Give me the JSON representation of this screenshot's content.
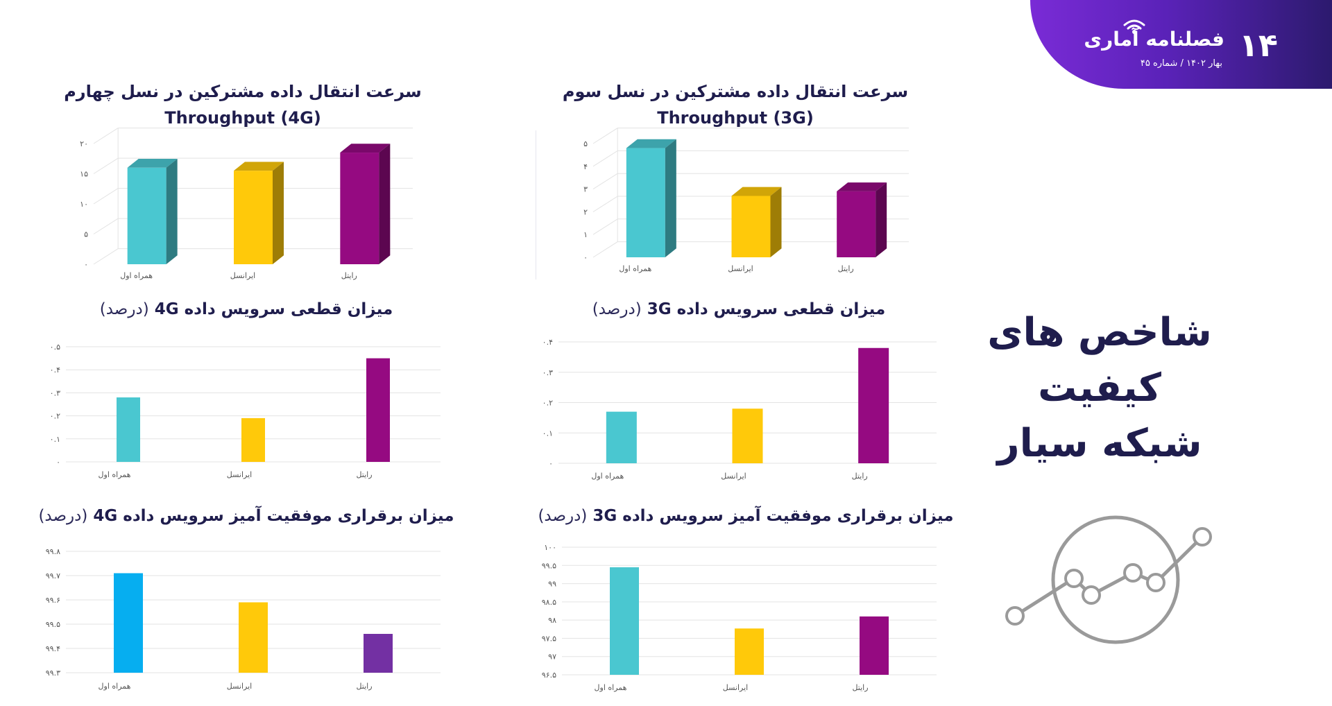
{
  "header": {
    "issue_number": "۱۴",
    "brand": "فصلنامه آماری",
    "issue_meta": "بهار ۱۴۰۲ / شماره ۴۵"
  },
  "main_title": "شاخص های کیفیت شبکه سیار",
  "icons": {
    "brand": "wifi-icon",
    "trend": "trend-line-icon"
  },
  "colors": {
    "teal": "#4ac7d0",
    "yellow": "#ffc90a",
    "purple": "#950a81",
    "blue": "#06aef0",
    "violet": "#7330a3",
    "navy": "#1f1d4d"
  },
  "chart_data": [
    {
      "id": "throughput_4g",
      "type": "bar",
      "title_line1": "سرعت انتقال داده مشترکین در نسل چهارم",
      "title_line2": "Throughput (4G)",
      "categories": [
        "همراه اول",
        "ایرانسل",
        "رایتل"
      ],
      "values": [
        16,
        15.5,
        18.5
      ],
      "yticks": [
        "۰",
        "۵",
        "۱۰",
        "۱۵",
        "۲۰"
      ],
      "ylim": [
        0,
        20
      ],
      "colors": [
        "#4ac7d0",
        "#ffc90a",
        "#950a81"
      ],
      "style": "3d"
    },
    {
      "id": "throughput_3g",
      "type": "bar",
      "title_line1": "سرعت انتقال داده مشترکین در نسل سوم",
      "title_line2": "Throughput (3G)",
      "categories": [
        "همراه اول",
        "ایرانسل",
        "رایتل"
      ],
      "values": [
        4.8,
        2.7,
        2.9
      ],
      "yticks": [
        "۰",
        "۱",
        "۲",
        "۳",
        "۴",
        "۵"
      ],
      "ylim": [
        0,
        5
      ],
      "colors": [
        "#4ac7d0",
        "#ffc90a",
        "#950a81"
      ],
      "style": "3d"
    },
    {
      "id": "drop_4g",
      "type": "bar",
      "title_main": "میزان قطعی سرویس داده 4G",
      "title_unit": "(درصد)",
      "categories": [
        "همراه اول",
        "ایرانسل",
        "رایتل"
      ],
      "values": [
        0.28,
        0.19,
        0.45
      ],
      "yticks": [
        "۰",
        "۰.۱",
        "۰.۲",
        "۰.۳",
        "۰.۴",
        "۰.۵"
      ],
      "ylim": [
        0,
        0.5
      ],
      "colors": [
        "#4ac7d0",
        "#ffc90a",
        "#950a81"
      ],
      "style": "flat"
    },
    {
      "id": "drop_3g",
      "type": "bar",
      "title_main": "میزان قطعی سرویس داده 3G",
      "title_unit": "(درصد)",
      "categories": [
        "همراه اول",
        "ایرانسل",
        "رایتل"
      ],
      "values": [
        0.17,
        0.18,
        0.38
      ],
      "yticks": [
        "۰",
        "۰.۱",
        "۰.۲",
        "۰.۳",
        "۰.۴"
      ],
      "ylim": [
        0,
        0.4
      ],
      "colors": [
        "#4ac7d0",
        "#ffc90a",
        "#950a81"
      ],
      "style": "flat"
    },
    {
      "id": "success_4g",
      "type": "bar",
      "title_main": "میزان برقراری موفقیت آمیز سرویس داده 4G",
      "title_unit": "(درصد)",
      "categories": [
        "همراه اول",
        "ایرانسل",
        "رایتل"
      ],
      "values": [
        99.71,
        99.59,
        99.46
      ],
      "yticks": [
        "۹۹.۳",
        "۹۹.۴",
        "۹۹.۵",
        "۹۹.۶",
        "۹۹.۷",
        "۹۹.۸"
      ],
      "ylim": [
        99.3,
        99.8
      ],
      "colors": [
        "#06aef0",
        "#ffc90a",
        "#7330a3"
      ],
      "style": "flat"
    },
    {
      "id": "success_3g",
      "type": "bar",
      "title_main": "میزان برقراری موفقیت آمیز سرویس داده 3G",
      "title_unit": "(درصد)",
      "categories": [
        "همراه اول",
        "ایرانسل",
        "رایتل"
      ],
      "values": [
        99.45,
        97.77,
        98.1
      ],
      "yticks": [
        "۹۶.۵",
        "۹۷",
        "۹۷.۵",
        "۹۸",
        "۹۸.۵",
        "۹۹",
        "۹۹.۵",
        "۱۰۰"
      ],
      "ylim": [
        96.5,
        100
      ],
      "colors": [
        "#4ac7d0",
        "#ffc90a",
        "#950a81"
      ],
      "style": "flat"
    }
  ]
}
